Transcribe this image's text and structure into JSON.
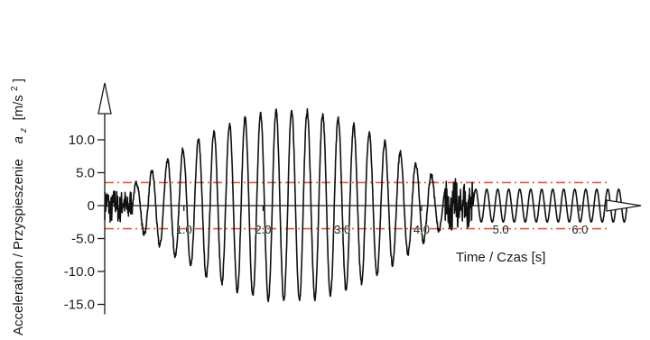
{
  "chart_data": {
    "type": "line",
    "title": "",
    "xlabel": "Time / Czas [s]",
    "ylabel": {
      "prefix": "Acceleration /  Przyspieszenie",
      "symbol": "a",
      "subscript": "z",
      "unit_open": " [m/s",
      "unit_sup": "2",
      "unit_close": "]"
    },
    "xlim": [
      0,
      6.6
    ],
    "ylim": [
      -16.5,
      20
    ],
    "x_ticks": [
      {
        "value": 1.0,
        "label": "1.0"
      },
      {
        "value": 2.0,
        "label": "2.0"
      },
      {
        "value": 3.0,
        "label": "3.0"
      },
      {
        "value": 4.0,
        "label": "4.0"
      },
      {
        "value": 5.0,
        "label": "5.0"
      },
      {
        "value": 6.0,
        "label": "6.0"
      }
    ],
    "y_ticks": [
      {
        "value": 10.0,
        "label": "10.0"
      },
      {
        "value": 5.0,
        "label": "5.0"
      },
      {
        "value": 0,
        "label": "0"
      },
      {
        "value": -5.0,
        "label": "-5.0"
      },
      {
        "value": -10.0,
        "label": "-10.0"
      },
      {
        "value": -15.0,
        "label": "-15.0"
      }
    ],
    "grid": false,
    "thresholds": [
      {
        "value": 3.5,
        "color": "#e05a3a"
      },
      {
        "value": -3.5,
        "color": "#e05a3a"
      }
    ],
    "series": [
      {
        "color": "#111111",
        "segments": [
          {
            "type": "noise",
            "x_start": 0.0,
            "x_end": 0.35,
            "amplitude": 2.2
          },
          {
            "type": "sine",
            "x_start": 0.35,
            "x_end": 4.3,
            "freq_hz": 5.1,
            "peak_x": 2.35,
            "peak_amplitude": 14.5,
            "start_amplitude": 3.0,
            "end_amplitude": 3.0
          },
          {
            "type": "noise",
            "x_start": 4.3,
            "x_end": 4.65,
            "amplitude": 3.2
          },
          {
            "type": "sine",
            "x_start": 4.65,
            "x_end": 6.6,
            "freq_hz": 7.2,
            "amplitude": 2.5
          }
        ]
      }
    ]
  }
}
